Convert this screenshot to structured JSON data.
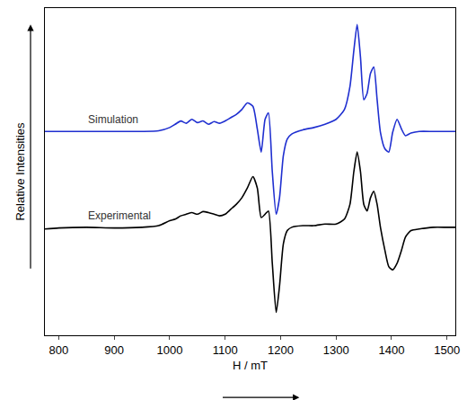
{
  "chart_data": {
    "type": "line",
    "xlabel": "H / mT",
    "ylabel": "Relative Intensities",
    "x": [
      775,
      800,
      850,
      900,
      950,
      980,
      1000,
      1010,
      1020,
      1030,
      1040,
      1050,
      1060,
      1070,
      1080,
      1090,
      1100,
      1110,
      1120,
      1130,
      1140,
      1150,
      1158,
      1165,
      1172,
      1178,
      1185,
      1192,
      1198,
      1205,
      1212,
      1220,
      1240,
      1260,
      1280,
      1300,
      1315,
      1325,
      1332,
      1338,
      1344,
      1350,
      1356,
      1362,
      1368,
      1374,
      1380,
      1388,
      1395,
      1402,
      1410,
      1418,
      1425,
      1435,
      1450,
      1475,
      1500,
      1515
    ],
    "series": [
      {
        "name": "Simulation",
        "color": "#1f2fd0",
        "values": [
          62.3,
          62.3,
          62.3,
          62.3,
          62.3,
          62.5,
          63.5,
          64.5,
          65.5,
          64.8,
          66,
          65,
          65.5,
          64.5,
          65.3,
          64.8,
          65.5,
          66.5,
          67.5,
          69,
          71,
          70,
          63,
          56,
          66,
          68,
          50,
          37,
          42,
          55,
          60,
          61.5,
          62.8,
          63.5,
          64.5,
          66,
          69,
          76,
          87,
          95,
          85,
          72,
          74,
          80,
          82,
          72,
          62,
          57,
          56,
          62,
          66,
          63,
          61,
          61.8,
          62.3,
          62.3,
          62.3,
          62.3
        ]
      },
      {
        "name": "Experimental",
        "color": "#000000",
        "values": [
          32.5,
          32.8,
          33,
          32.8,
          33,
          33.5,
          35,
          35.5,
          36.5,
          37,
          37.5,
          37,
          37.8,
          37.5,
          37,
          36.5,
          37,
          38.5,
          40,
          42,
          45,
          48.5,
          45,
          36,
          37,
          38,
          22,
          7,
          15,
          28,
          32,
          33,
          33.5,
          33.5,
          34,
          34,
          35.5,
          40,
          50,
          56,
          50,
          40,
          38,
          42,
          44,
          40,
          33,
          26,
          21,
          20,
          22,
          26,
          30,
          32,
          32.5,
          33,
          33,
          33
        ]
      }
    ],
    "xlim": [
      775,
      1515
    ],
    "xticks": [
      800,
      900,
      1000,
      1100,
      1200,
      1300,
      1400,
      1500
    ],
    "ylim": [
      0,
      100
    ],
    "tick_labels": "x",
    "grid": false
  }
}
